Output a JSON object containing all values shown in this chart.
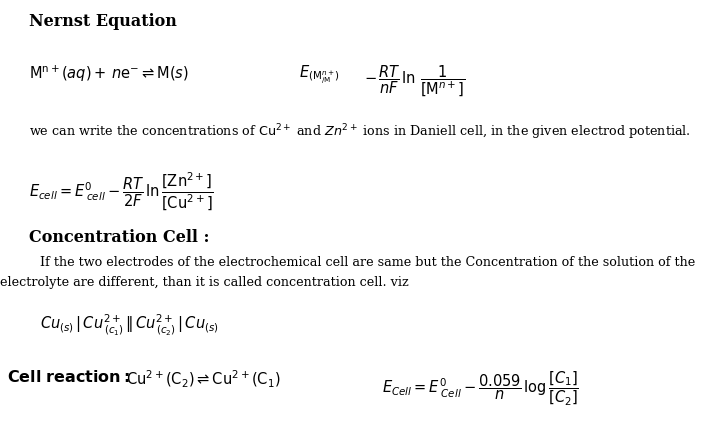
{
  "bg_color": "#ffffff",
  "text_color": "#000000",
  "figsize": [
    7.2,
    4.37
  ],
  "dpi": 100,
  "title": "Nernst Equation",
  "heading2": "Concentration Cell :",
  "eq1_left": "$\\mathrm{M^{n+}(}\\mathit{aq}\\mathrm{) +}\\, \\mathit{n}\\mathrm{e^{-} \\rightleftharpoons M(}s\\mathrm{)}$",
  "eq1_right": "$E_{(\\mathrm{M}^{n+}_{/\\mathrm{M}})} - \\dfrac{RT}{nF}\\ln\\dfrac{1}{[\\mathrm{M}^{n+}]}$",
  "desc_line1": "we can write the concentrations of ",
  "desc_cu": "$\\mathrm{Cu^{2+}}$",
  "desc_and": " and ",
  "desc_zn": "$\\mathit{Zn}^{2+}$",
  "desc_rest": " ions in Daniell cell, in the given electrod potential.",
  "eq2": "$E_{cell} = E^0_{\\ cell} - \\dfrac{RT}{2F}\\,\\ln\\dfrac{[\\mathrm{Zn^{2+}}]}{[\\mathrm{Cu^{2+}}]}$",
  "para1": "If the two electrodes of the electrochemical cell are same but the Concentration of the solution of the",
  "para2": "electrolyte are different, than it is called concentration cell. viz",
  "conc_cell": "$\\mathit{Cu}_{(s)}\\,|\\,\\mathit{Cu}^{2+}_{\\,(c_1)}\\,\\|\\,\\mathit{Cu}^{2+}_{\\,(c_2)}\\,|\\,\\mathit{Cu}_{(s)}$",
  "cell_rxn_label": "Cell reaction:",
  "cell_rxn_eq": "$\\mathrm{Cu^{2+}(C_2)} \\rightleftharpoons \\mathrm{Cu^{2+}(C_1)}$",
  "ecell_eq": "$E_{Cell} = E^0_{\\ Cell} - \\dfrac{0.059}{n}\\,\\log\\dfrac{[C_1]}{[C_2]}$"
}
